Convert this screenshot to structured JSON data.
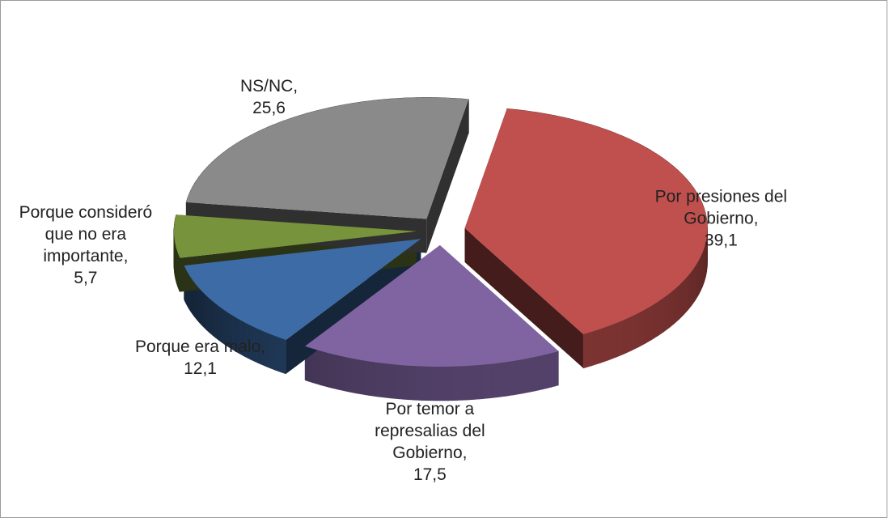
{
  "chart_data": {
    "type": "pie3d",
    "categories": [
      "Por presiones del Gobierno,",
      "Por temor a represalias del Gobierno,",
      "Porque era malo,",
      "Porque consideró que no era importante,",
      "NS/NC,"
    ],
    "values": [
      39.1,
      17.5,
      12.1,
      5.7,
      25.6
    ],
    "value_labels": [
      "39,1",
      "17,5",
      "12,1",
      "5,7",
      "25,6"
    ],
    "colors": [
      "#c0504d",
      "#8064a2",
      "#3c6ba5",
      "#77933c",
      "#8a8a8a"
    ]
  }
}
